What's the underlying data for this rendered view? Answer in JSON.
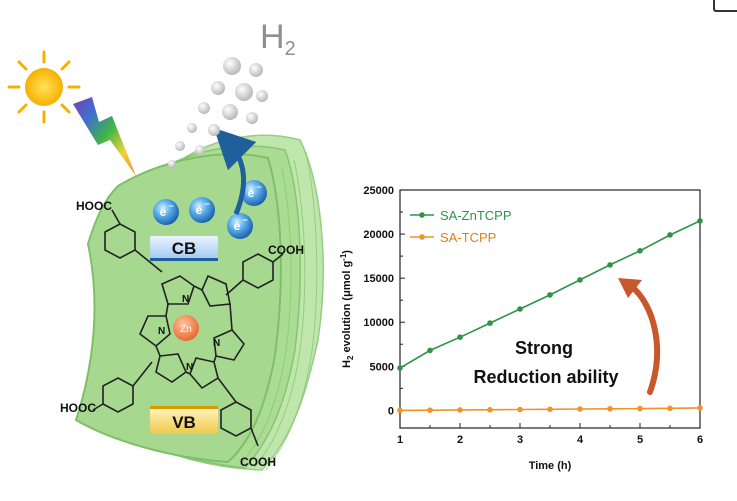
{
  "left_panel": {
    "h2_label": "H",
    "h2_subscript": "2",
    "electron_symbol": "e",
    "electron_charge": "−",
    "cb_label": "CB",
    "vb_label": "VB",
    "metal_label": "Zn",
    "nitrogen_label": "N",
    "hooc_label": "HOOC",
    "cooh_label": "COOH",
    "colors": {
      "sheet": "#a6d98f",
      "sheet_dark": "#7fbf69",
      "electron": "#2c7cc8",
      "zn_center": "#ef7d4a",
      "arrow": "#1f5f9a"
    }
  },
  "chart_data": {
    "type": "line",
    "xlabel": "Time (h)",
    "ylabel_prefix": "H",
    "ylabel_sub": "2",
    "ylabel_mid": " evolution (μmol g",
    "ylabel_sup": "-1",
    "ylabel_end": ")",
    "xlim": [
      1,
      6
    ],
    "ylim": [
      -2000,
      25000
    ],
    "x_ticks": [
      1,
      2,
      3,
      4,
      5,
      6
    ],
    "y_ticks": [
      0,
      5000,
      10000,
      15000,
      20000,
      25000
    ],
    "x": [
      1,
      1.5,
      2,
      2.5,
      3,
      3.5,
      4,
      4.5,
      5,
      5.5,
      6
    ],
    "series": [
      {
        "name": "SA-ZnTCPP",
        "color": "#2e9447",
        "values": [
          4800,
          6800,
          8300,
          9900,
          11500,
          13100,
          14800,
          16500,
          18100,
          19900,
          21500
        ]
      },
      {
        "name": "SA-TCPP",
        "color": "#f0932b",
        "values": [
          0,
          20,
          50,
          70,
          100,
          120,
          150,
          180,
          200,
          230,
          280
        ]
      }
    ],
    "legend_position": "top-left",
    "annotation_line1": "Strong",
    "annotation_line2": "Reduction ability",
    "annotation_arrow_color": "#c8582c"
  }
}
